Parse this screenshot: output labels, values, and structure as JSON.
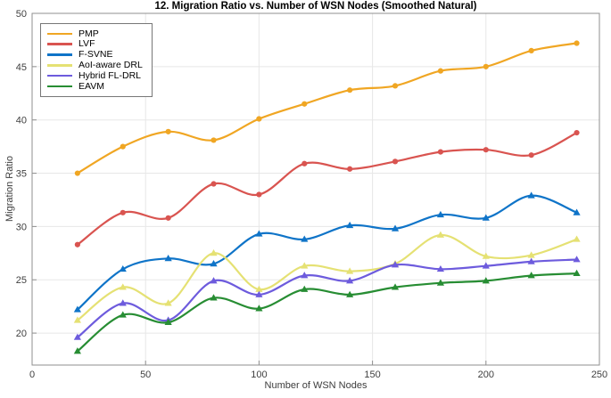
{
  "chart_data": {
    "type": "line",
    "title": "12. Migration Ratio vs. Number of WSN Nodes (Smoothed Natural)",
    "xlabel": "Number of WSN Nodes",
    "ylabel": "Migration Ratio",
    "xlim": [
      0,
      250
    ],
    "ylim": [
      17,
      50
    ],
    "xticks": [
      0,
      50,
      100,
      150,
      200,
      250
    ],
    "yticks": [
      20,
      25,
      30,
      35,
      40,
      45,
      50
    ],
    "grid": true,
    "smoothing": "natural-spline",
    "legend_position": "top-left",
    "x": [
      20,
      40,
      60,
      80,
      100,
      120,
      140,
      160,
      180,
      200,
      220,
      240
    ],
    "series": [
      {
        "name": "PMP",
        "color": "#F0A623",
        "marker": "circle",
        "values": [
          35.0,
          37.5,
          38.9,
          38.1,
          40.1,
          41.5,
          42.8,
          43.2,
          44.6,
          45.0,
          46.5,
          47.2
        ]
      },
      {
        "name": "LVF",
        "color": "#D95450",
        "marker": "circle",
        "values": [
          28.3,
          31.3,
          30.8,
          34.0,
          33.0,
          35.9,
          35.4,
          36.1,
          37.0,
          37.2,
          36.7,
          38.8
        ]
      },
      {
        "name": "F-SVNE",
        "color": "#0F74C8",
        "marker": "triangle",
        "values": [
          22.2,
          26.0,
          27.0,
          26.5,
          29.3,
          28.8,
          30.1,
          29.8,
          31.1,
          30.8,
          32.9,
          31.3
        ]
      },
      {
        "name": "AoI-aware DRL",
        "color": "#E5E173",
        "marker": "triangle",
        "values": [
          21.2,
          24.3,
          22.8,
          27.5,
          24.1,
          26.3,
          25.8,
          26.5,
          29.2,
          27.2,
          27.3,
          28.8
        ]
      },
      {
        "name": "Hybrid FL-DRL",
        "color": "#6D5BDD",
        "marker": "triangle",
        "values": [
          19.6,
          22.8,
          21.2,
          24.9,
          23.6,
          25.4,
          24.9,
          26.4,
          26.0,
          26.3,
          26.7,
          26.9
        ]
      },
      {
        "name": "EAVM",
        "color": "#278D33",
        "marker": "triangle",
        "values": [
          18.3,
          21.7,
          21.0,
          23.3,
          22.3,
          24.1,
          23.6,
          24.3,
          24.7,
          24.9,
          25.4,
          25.6
        ]
      }
    ],
    "colors": {
      "grid": "#E7E7E7",
      "axis_box": "#8F8F8F",
      "tick_label": "#3F3F3F",
      "background": "#FFFFFF"
    }
  }
}
